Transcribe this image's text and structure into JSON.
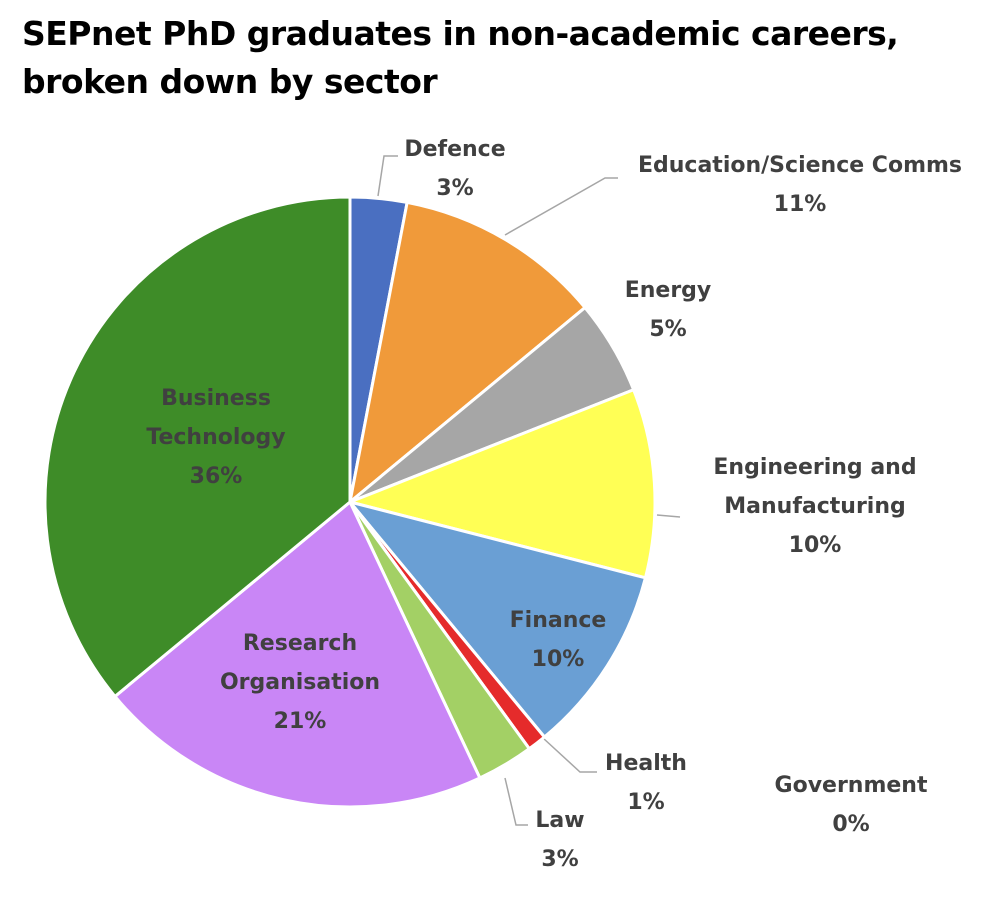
{
  "chart_data": {
    "type": "pie",
    "title": "SEPnet PhD graduates in non-academic careers, broken down by sector",
    "categories": [
      "Defence",
      "Education/Science Comms",
      "Energy",
      "Engineering and Manufacturing",
      "Finance",
      "Health",
      "Government",
      "Law",
      "Research Organisation",
      "Business Technology"
    ],
    "values": [
      3,
      11,
      5,
      10,
      10,
      1,
      0,
      3,
      21,
      36
    ],
    "value_labels": [
      "3%",
      "11%",
      "5%",
      "10%",
      "10%",
      "1%",
      "0%",
      "3%",
      "21%",
      "36%"
    ],
    "colors": [
      "#4a6fc1",
      "#f09a3a",
      "#a6a6a6",
      "#ffff55",
      "#6a9fd4",
      "#e52b2b",
      "#7f5fb0",
      "#a3d065",
      "#c986f6",
      "#3e8c28"
    ]
  }
}
